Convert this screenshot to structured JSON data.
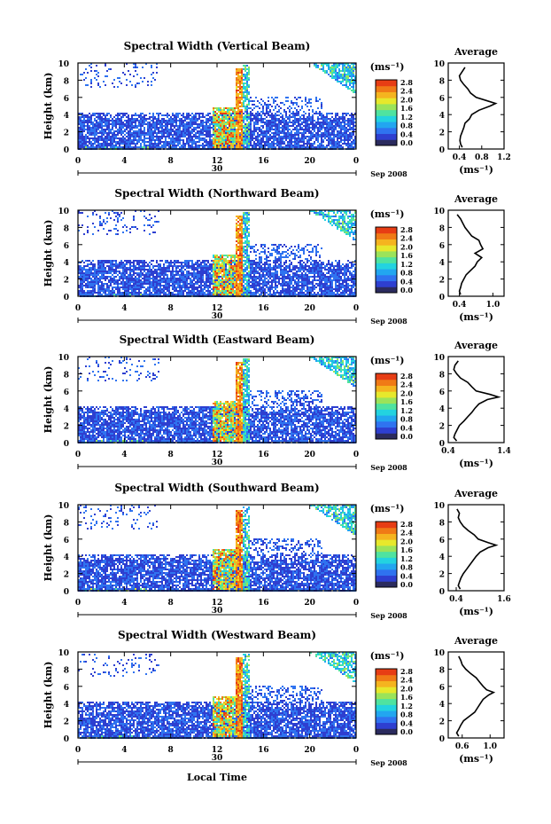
{
  "figure": {
    "xlabel": "Local Time",
    "date_label": "Sep 2008",
    "day_label": "30",
    "colorbar_unit": "(ms⁻¹)",
    "colorbar_ticks": [
      "2.8",
      "2.4",
      "2.0",
      "1.6",
      "1.2",
      "0.8",
      "0.4",
      "0.0"
    ],
    "colorbar_colors": [
      "#2b2b5e",
      "#2e3fd0",
      "#2f73f0",
      "#22a6f0",
      "#23d3e0",
      "#4fe3a0",
      "#9be35a",
      "#e7e82c",
      "#f5b41f",
      "#f07a16",
      "#e73d14"
    ],
    "x_ticks": [
      "0",
      "4",
      "8",
      "12",
      "16",
      "20",
      "0"
    ],
    "y_ticks": [
      "0",
      "2",
      "4",
      "6",
      "8",
      "10"
    ],
    "ylabel": "Height (km)",
    "avg_title": "Average",
    "avg_unit": "(ms⁻¹)"
  },
  "chart_data": [
    {
      "type": "heatmap",
      "title": "Spectral Width (Vertical Beam)",
      "xlabel": "Local Time",
      "ylabel": "Height (km)",
      "xlim": [
        0,
        24
      ],
      "ylim": [
        0,
        10
      ],
      "clim": [
        0,
        3.0
      ],
      "profile": {
        "title": "Average",
        "xlabel": "(ms⁻¹)",
        "xlim": [
          0.2,
          1.2
        ],
        "xticks": [
          "0.4",
          "0.8",
          "1.2"
        ],
        "height": [
          0.2,
          0.6,
          1,
          1.5,
          2,
          2.5,
          3,
          3.5,
          4,
          4.5,
          5,
          5.3,
          5.6,
          6,
          6.5,
          7,
          7.5,
          8,
          8.5,
          9,
          9.5
        ],
        "values": [
          0.45,
          0.42,
          0.41,
          0.42,
          0.45,
          0.48,
          0.5,
          0.58,
          0.62,
          0.75,
          0.95,
          1.05,
          0.9,
          0.7,
          0.6,
          0.55,
          0.48,
          0.42,
          0.4,
          0.45,
          0.5
        ]
      }
    },
    {
      "type": "heatmap",
      "title": "Spectral Width (Northward Beam)",
      "xlabel": "Local Time",
      "ylabel": "Height (km)",
      "xlim": [
        0,
        24
      ],
      "ylim": [
        0,
        10
      ],
      "clim": [
        0,
        3.0
      ],
      "profile": {
        "title": "Average",
        "xlabel": "(ms⁻¹)",
        "xlim": [
          0.2,
          1.2
        ],
        "xticks": [
          "0.4",
          "1.0"
        ],
        "height": [
          0.2,
          0.6,
          1,
          1.5,
          2,
          2.5,
          3,
          3.5,
          4,
          4.5,
          5,
          5.5,
          6,
          6.5,
          7,
          7.5,
          8,
          8.5,
          9,
          9.5
        ],
        "values": [
          0.42,
          0.4,
          0.42,
          0.44,
          0.48,
          0.52,
          0.6,
          0.68,
          0.72,
          0.8,
          0.68,
          0.82,
          0.78,
          0.75,
          0.62,
          0.56,
          0.5,
          0.46,
          0.42,
          0.36
        ]
      }
    },
    {
      "type": "heatmap",
      "title": "Spectral Width (Eastward Beam)",
      "xlabel": "Local Time",
      "ylabel": "Height (km)",
      "xlim": [
        0,
        24
      ],
      "ylim": [
        0,
        10
      ],
      "clim": [
        0,
        3.0
      ],
      "profile": {
        "title": "Average",
        "xlabel": "(ms⁻¹)",
        "xlim": [
          0.4,
          1.4
        ],
        "xticks": [
          "0.4",
          "1.4"
        ],
        "height": [
          0.2,
          0.6,
          1,
          1.5,
          2,
          2.5,
          3,
          3.5,
          4,
          4.5,
          5,
          5.3,
          5.6,
          6,
          6.5,
          7,
          7.5,
          8,
          8.5,
          9,
          9.5
        ],
        "values": [
          0.55,
          0.5,
          0.52,
          0.56,
          0.6,
          0.68,
          0.75,
          0.82,
          0.88,
          0.95,
          1.1,
          1.3,
          1.15,
          0.9,
          0.82,
          0.75,
          0.62,
          0.55,
          0.5,
          0.52,
          0.58
        ]
      }
    },
    {
      "type": "heatmap",
      "title": "Spectral Width (Southward Beam)",
      "xlabel": "Local Time",
      "ylabel": "Height (km)",
      "xlim": [
        0,
        24
      ],
      "ylim": [
        0,
        10
      ],
      "clim": [
        0,
        3.0
      ],
      "profile": {
        "title": "Average",
        "xlabel": "(ms⁻¹)",
        "xlim": [
          0.2,
          1.6
        ],
        "xticks": [
          "0.4",
          "1.6"
        ],
        "height": [
          0.2,
          0.6,
          1,
          1.5,
          2,
          2.5,
          3,
          3.5,
          4,
          4.5,
          5,
          5.3,
          5.6,
          6,
          6.5,
          7,
          7.5,
          8,
          8.5,
          9,
          9.5
        ],
        "values": [
          0.5,
          0.45,
          0.48,
          0.52,
          0.58,
          0.66,
          0.74,
          0.82,
          0.9,
          1.0,
          1.2,
          1.4,
          1.2,
          0.95,
          0.85,
          0.7,
          0.58,
          0.5,
          0.45,
          0.48,
          0.42
        ]
      }
    },
    {
      "type": "heatmap",
      "title": "Spectral Width (Westward Beam)",
      "xlabel": "Local Time",
      "ylabel": "Height (km)",
      "xlim": [
        0,
        24
      ],
      "ylim": [
        0,
        10
      ],
      "clim": [
        0,
        3.0
      ],
      "profile": {
        "title": "Average",
        "xlabel": "(ms⁻¹)",
        "xlim": [
          0.4,
          1.2
        ],
        "xticks": [
          "0.6",
          "1.0"
        ],
        "height": [
          0.2,
          0.6,
          1,
          1.5,
          2,
          2.5,
          3,
          3.5,
          4,
          4.5,
          5,
          5.3,
          5.6,
          6,
          6.5,
          7,
          7.5,
          8,
          8.5,
          9,
          9.5
        ],
        "values": [
          0.55,
          0.52,
          0.55,
          0.58,
          0.62,
          0.7,
          0.78,
          0.82,
          0.86,
          0.9,
          0.98,
          1.05,
          0.95,
          0.9,
          0.85,
          0.8,
          0.72,
          0.65,
          0.6,
          0.58,
          0.55
        ]
      }
    }
  ]
}
